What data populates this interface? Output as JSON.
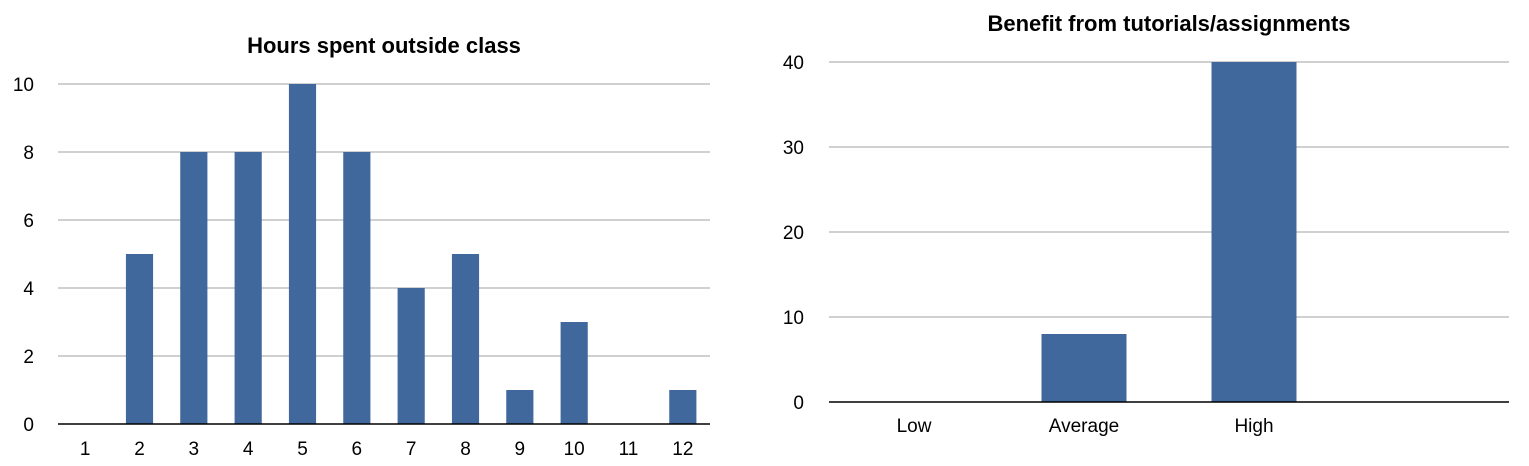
{
  "colors": {
    "bar": "#41689c",
    "grid": "#b3b3b3",
    "axis": "#000000",
    "background": "#ffffff"
  },
  "chart_data": [
    {
      "type": "bar",
      "title": "Hours spent outside class",
      "xlabel": "",
      "ylabel": "",
      "categories": [
        "1",
        "2",
        "3",
        "4",
        "5",
        "6",
        "7",
        "8",
        "9",
        "10",
        "11",
        "12"
      ],
      "values": [
        0,
        5,
        8,
        8,
        10,
        8,
        4,
        5,
        1,
        3,
        0,
        1
      ],
      "ylim": [
        0,
        10
      ],
      "yticks": [
        0,
        2,
        4,
        6,
        8,
        10
      ],
      "grid": true,
      "legend": "none"
    },
    {
      "type": "bar",
      "title": "Benefit from tutorials/assignments",
      "xlabel": "",
      "ylabel": "",
      "categories": [
        "Low",
        "Average",
        "High",
        ""
      ],
      "values": [
        0,
        8,
        40,
        0
      ],
      "ylim": [
        0,
        40
      ],
      "yticks": [
        0,
        10,
        20,
        30,
        40
      ],
      "grid": true,
      "legend": "none"
    }
  ]
}
